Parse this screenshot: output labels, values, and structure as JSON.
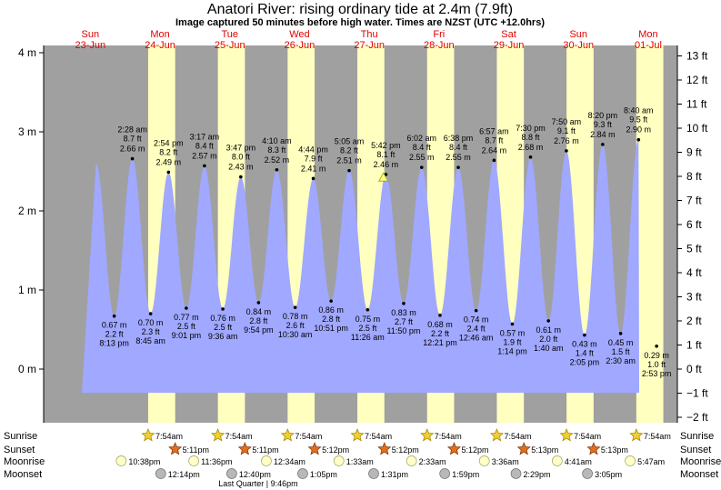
{
  "chart_data": {
    "type": "area",
    "title": "Anatori River: rising  ordinary tide at 2.4m (7.9ft)",
    "subtitle": "Image captured 50 minutes before high water. Times are NZST (UTC +12.0hrs)",
    "y_left_unit": "m",
    "ylim_m": [
      -0.55,
      4.0
    ],
    "left_ticks": [
      "4 m",
      "3 m",
      "2 m",
      "1 m",
      "0 m"
    ],
    "left_tick_values": [
      4,
      3,
      2,
      1,
      0
    ],
    "right_ticks": [
      "13 ft",
      "12 ft",
      "11 ft",
      "10 ft",
      "9 ft",
      "8 ft",
      "7 ft",
      "6 ft",
      "5 ft",
      "4 ft",
      "3 ft",
      "2 ft",
      "1 ft",
      "0 ft",
      "−1 ft",
      "−2 ft"
    ],
    "right_tick_values_ft": [
      13,
      12,
      11,
      10,
      9,
      8,
      7,
      6,
      5,
      4,
      3,
      2,
      1,
      0,
      -1,
      -2
    ],
    "days": [
      {
        "dow": "Sun",
        "date": "23-Jun"
      },
      {
        "dow": "Mon",
        "date": "24-Jun"
      },
      {
        "dow": "Tue",
        "date": "25-Jun"
      },
      {
        "dow": "Wed",
        "date": "26-Jun"
      },
      {
        "dow": "Thu",
        "date": "27-Jun"
      },
      {
        "dow": "Fri",
        "date": "28-Jun"
      },
      {
        "dow": "Sat",
        "date": "29-Jun"
      },
      {
        "dow": "Sun",
        "date": "30-Jun"
      },
      {
        "dow": "Mon",
        "date": "01-Jul"
      }
    ],
    "tides": [
      {
        "day": 0,
        "time": "20:13",
        "label": "8:13 pm",
        "m": 0.67,
        "ft": "2.2 ft",
        "m_label": "0.67 m",
        "type": "low"
      },
      {
        "day": 1,
        "time": "02:28",
        "label": "2:28 am",
        "m": 2.66,
        "ft": "8.7 ft",
        "m_label": "2.66 m",
        "type": "high"
      },
      {
        "day": 1,
        "time": "08:45",
        "label": "8:45 am",
        "m": 0.7,
        "ft": "2.3 ft",
        "m_label": "0.70 m",
        "type": "low"
      },
      {
        "day": 1,
        "time": "14:54",
        "label": "2:54 pm",
        "m": 2.49,
        "ft": "8.2 ft",
        "m_label": "2.49 m",
        "type": "high"
      },
      {
        "day": 1,
        "time": "21:01",
        "label": "9:01 pm",
        "m": 0.77,
        "ft": "2.5 ft",
        "m_label": "0.77 m",
        "type": "low"
      },
      {
        "day": 2,
        "time": "03:17",
        "label": "3:17 am",
        "m": 2.57,
        "ft": "8.4 ft",
        "m_label": "2.57 m",
        "type": "high"
      },
      {
        "day": 2,
        "time": "09:36",
        "label": "9:36 am",
        "m": 0.76,
        "ft": "2.5 ft",
        "m_label": "0.76 m",
        "type": "low"
      },
      {
        "day": 2,
        "time": "15:47",
        "label": "3:47 pm",
        "m": 2.43,
        "ft": "8.0 ft",
        "m_label": "2.43 m",
        "type": "high"
      },
      {
        "day": 2,
        "time": "21:54",
        "label": "9:54 pm",
        "m": 0.84,
        "ft": "2.8 ft",
        "m_label": "0.84 m",
        "type": "low"
      },
      {
        "day": 3,
        "time": "04:10",
        "label": "4:10 am",
        "m": 2.52,
        "ft": "8.3 ft",
        "m_label": "2.52 m",
        "type": "high"
      },
      {
        "day": 3,
        "time": "10:30",
        "label": "10:30 am",
        "m": 0.78,
        "ft": "2.6 ft",
        "m_label": "0.78 m",
        "type": "low"
      },
      {
        "day": 3,
        "time": "16:44",
        "label": "4:44 pm",
        "m": 2.41,
        "ft": "7.9 ft",
        "m_label": "2.41 m",
        "type": "high"
      },
      {
        "day": 3,
        "time": "22:51",
        "label": "10:51 pm",
        "m": 0.86,
        "ft": "2.8 ft",
        "m_label": "0.86 m",
        "type": "low"
      },
      {
        "day": 4,
        "time": "05:05",
        "label": "5:05 am",
        "m": 2.51,
        "ft": "8.2 ft",
        "m_label": "2.51 m",
        "type": "high"
      },
      {
        "day": 4,
        "time": "11:26",
        "label": "11:26 am",
        "m": 0.75,
        "ft": "2.5 ft",
        "m_label": "0.75 m",
        "type": "low"
      },
      {
        "day": 4,
        "time": "17:42",
        "label": "5:42 pm",
        "m": 2.46,
        "ft": "8.1 ft",
        "m_label": "2.46 m",
        "type": "high"
      },
      {
        "day": 4,
        "time": "23:50",
        "label": "11:50 pm",
        "m": 0.83,
        "ft": "2.7 ft",
        "m_label": "0.83 m",
        "type": "low"
      },
      {
        "day": 5,
        "time": "06:02",
        "label": "6:02 am",
        "m": 2.55,
        "ft": "8.4 ft",
        "m_label": "2.55 m",
        "type": "high"
      },
      {
        "day": 5,
        "time": "12:21",
        "label": "12:21 pm",
        "m": 0.68,
        "ft": "2.2 ft",
        "m_label": "0.68 m",
        "type": "low"
      },
      {
        "day": 5,
        "time": "18:38",
        "label": "6:38 pm",
        "m": 2.55,
        "ft": "8.4 ft",
        "m_label": "2.55 m",
        "type": "high"
      },
      {
        "day": 6,
        "time": "00:46",
        "label": "12:46 am",
        "m": 0.74,
        "ft": "2.4 ft",
        "m_label": "0.74 m",
        "type": "low"
      },
      {
        "day": 6,
        "time": "06:57",
        "label": "6:57 am",
        "m": 2.64,
        "ft": "8.7 ft",
        "m_label": "2.64 m",
        "type": "high"
      },
      {
        "day": 6,
        "time": "13:14",
        "label": "1:14 pm",
        "m": 0.57,
        "ft": "1.9 ft",
        "m_label": "0.57 m",
        "type": "low"
      },
      {
        "day": 6,
        "time": "19:30",
        "label": "7:30 pm",
        "m": 2.68,
        "ft": "8.8 ft",
        "m_label": "2.68 m",
        "type": "high"
      },
      {
        "day": 7,
        "time": "01:40",
        "label": "1:40 am",
        "m": 0.61,
        "ft": "2.0 ft",
        "m_label": "0.61 m",
        "type": "low"
      },
      {
        "day": 7,
        "time": "07:50",
        "label": "7:50 am",
        "m": 2.76,
        "ft": "9.1 ft",
        "m_label": "2.76 m",
        "type": "high"
      },
      {
        "day": 7,
        "time": "14:05",
        "label": "2:05 pm",
        "m": 0.43,
        "ft": "1.4 ft",
        "m_label": "0.43 m",
        "type": "low"
      },
      {
        "day": 7,
        "time": "20:20",
        "label": "8:20 pm",
        "m": 2.84,
        "ft": "9.3 ft",
        "m_label": "2.84 m",
        "type": "high"
      },
      {
        "day": 8,
        "time": "02:30",
        "label": "2:30 am",
        "m": 0.45,
        "ft": "1.5 ft",
        "m_label": "0.45 m",
        "type": "low"
      },
      {
        "day": 8,
        "time": "08:40",
        "label": "8:40 am",
        "m": 2.9,
        "ft": "9.5 ft",
        "m_label": "2.90 m",
        "type": "high"
      },
      {
        "day": 8,
        "time": "14:53",
        "label": "2:53 pm",
        "m": 0.29,
        "ft": "1.0 ft",
        "m_label": "0.29 m",
        "type": "low"
      }
    ],
    "current_marker": {
      "day": 4,
      "time": "16:52",
      "m": 2.4
    },
    "sun_moon_labels": {
      "sunrise": "Sunrise",
      "sunset": "Sunset",
      "moonrise": "Moonrise",
      "moonset": "Moonset"
    },
    "sunrise": [
      {
        "day": 1,
        "label": "7:54am"
      },
      {
        "day": 2,
        "label": "7:54am"
      },
      {
        "day": 3,
        "label": "7:54am"
      },
      {
        "day": 4,
        "label": "7:54am"
      },
      {
        "day": 5,
        "label": "7:54am"
      },
      {
        "day": 6,
        "label": "7:54am"
      },
      {
        "day": 7,
        "label": "7:54am"
      },
      {
        "day": 8,
        "label": "7:54am"
      }
    ],
    "sunset": [
      {
        "day": 1,
        "label": "5:11pm"
      },
      {
        "day": 2,
        "label": "5:11pm"
      },
      {
        "day": 3,
        "label": "5:12pm"
      },
      {
        "day": 4,
        "label": "5:12pm"
      },
      {
        "day": 5,
        "label": "5:12pm"
      },
      {
        "day": 6,
        "label": "5:13pm"
      },
      {
        "day": 7,
        "label": "5:13pm"
      }
    ],
    "moonrise": [
      {
        "day": 0,
        "time": "22:38",
        "label": "10:38pm"
      },
      {
        "day": 1,
        "time": "23:36",
        "label": "11:36pm"
      },
      {
        "day": 3,
        "time": "00:34",
        "label": "12:34am"
      },
      {
        "day": 4,
        "time": "01:33",
        "label": "1:33am"
      },
      {
        "day": 5,
        "time": "02:33",
        "label": "2:33am"
      },
      {
        "day": 6,
        "time": "03:36",
        "label": "3:36am"
      },
      {
        "day": 7,
        "time": "04:41",
        "label": "4:41am"
      },
      {
        "day": 8,
        "time": "05:47",
        "label": "5:47am"
      }
    ],
    "moonset": [
      {
        "day": 1,
        "time": "12:14",
        "label": "12:14pm"
      },
      {
        "day": 2,
        "time": "12:40",
        "label": "12:40pm"
      },
      {
        "day": 3,
        "time": "13:05",
        "label": "1:05pm"
      },
      {
        "day": 4,
        "time": "13:31",
        "label": "1:31pm"
      },
      {
        "day": 5,
        "time": "13:59",
        "label": "1:59pm"
      },
      {
        "day": 6,
        "time": "14:29",
        "label": "2:29pm"
      },
      {
        "day": 7,
        "time": "15:05",
        "label": "3:05pm"
      }
    ],
    "moon_phase_note": {
      "day": 2,
      "time": "21:46",
      "label": "Last Quarter | 9:46pm"
    },
    "colors": {
      "night": "#a0a0a0",
      "day": "#ffffc0",
      "water": "#a0a8ff",
      "sun": "#f0d030",
      "sunset_star": "#e07020",
      "moonrise": "#ffffc8",
      "moonset": "#b8b8b8",
      "day_label": "#e00000"
    }
  }
}
